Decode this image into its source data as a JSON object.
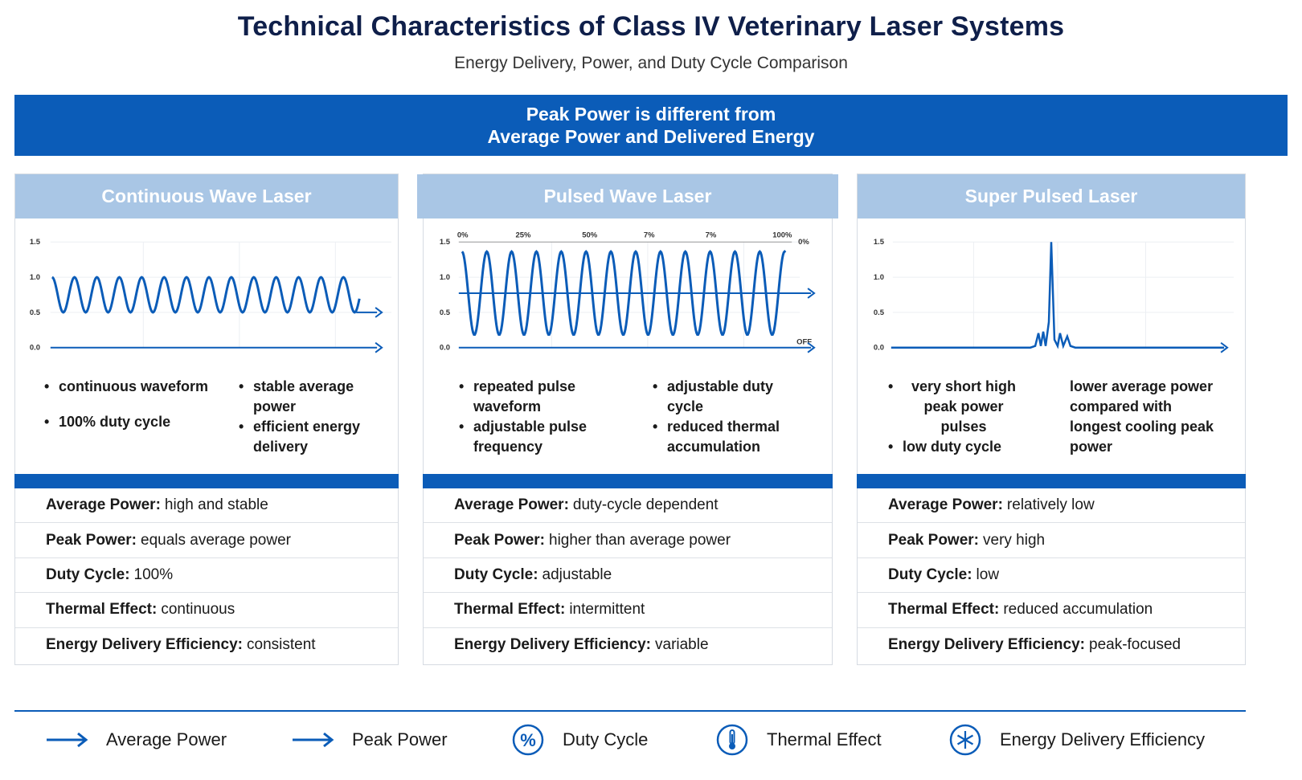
{
  "header": {
    "title": "Technical Characteristics of Class IV Veterinary Laser Systems",
    "subtitle": "Energy Delivery, Power, and Duty Cycle Comparison"
  },
  "banner": {
    "line1": "Peak Power is different from",
    "line2": "Average Power and Delivered Energy"
  },
  "colors": {
    "primary": "#0b5cb8",
    "header": "#a9c6e5",
    "title": "#0f1f4a"
  },
  "panels": [
    {
      "title": "Continuous Wave Laser",
      "y_ticks": [
        "1.5",
        "1.0",
        "0.5",
        "0.0"
      ],
      "bullets_left": [
        "continuous waveform",
        "100% duty cycle"
      ],
      "bullets_right": [
        "stable average power",
        "efficient energy delivery"
      ],
      "rows": [
        {
          "label": "Average Power:",
          "value": "high and stable"
        },
        {
          "label": "Peak Power:",
          "value": "equals average power"
        },
        {
          "label": "Duty Cycle:",
          "value": "100%"
        },
        {
          "label": "Thermal Effect:",
          "value": "continuous"
        },
        {
          "label": "Energy Delivery Efficiency:",
          "value": "consistent"
        }
      ]
    },
    {
      "title": "Pulsed Wave Laser",
      "y_ticks": [
        "1.5",
        "1.0",
        "0.5",
        "0.0"
      ],
      "top_labels": [
        "0%",
        "25%",
        "50%",
        "7%",
        "7%",
        "100%"
      ],
      "right_labels": [
        "0%",
        "OFF"
      ],
      "bullets_left": [
        "repeated pulse waveform",
        "adjustable pulse frequency"
      ],
      "bullets_right": [
        "adjustable duty cycle",
        "reduced thermal accumulation"
      ],
      "rows": [
        {
          "label": "Average Power:",
          "value": "duty-cycle dependent"
        },
        {
          "label": "Peak Power:",
          "value": "higher than average power"
        },
        {
          "label": "Duty Cycle:",
          "value": "adjustable"
        },
        {
          "label": "Thermal Effect:",
          "value": "intermittent"
        },
        {
          "label": "Energy Delivery Efficiency:",
          "value": "variable"
        }
      ]
    },
    {
      "title": "Super Pulsed Laser",
      "y_ticks": [
        "1.5",
        "1.0",
        "0.5",
        "0.0"
      ],
      "bullets_left": [
        "very short high peak power pulses",
        "low duty cycle"
      ],
      "right_text": "lower average power compared with longest cooling peak power",
      "rows": [
        {
          "label": "Average Power:",
          "value": "relatively low"
        },
        {
          "label": "Peak Power:",
          "value": "very high"
        },
        {
          "label": "Duty Cycle:",
          "value": "low"
        },
        {
          "label": "Thermal Effect:",
          "value": "reduced accumulation"
        },
        {
          "label": "Energy Delivery Efficiency:",
          "value": "peak-focused"
        }
      ]
    }
  ],
  "legend": [
    {
      "icon": "arrow-icon",
      "label": "Average Power"
    },
    {
      "icon": "arrow-icon",
      "label": "Peak Power"
    },
    {
      "icon": "percent-icon",
      "label": "Duty Cycle"
    },
    {
      "icon": "thermometer-icon",
      "label": "Thermal Effect"
    },
    {
      "icon": "snowflake-icon",
      "label": "Energy Delivery Efficiency"
    }
  ]
}
